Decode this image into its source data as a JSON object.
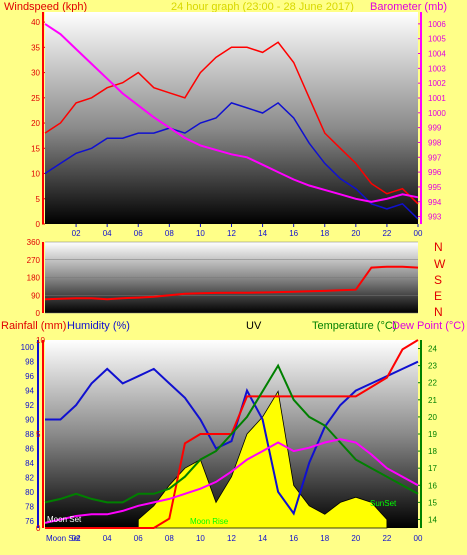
{
  "colors": {
    "background": "#ffff88",
    "wind_gust": "#ff0000",
    "wind_avg": "#1010d0",
    "barometer": "#ff00ff",
    "direction": "#ff0000",
    "humidity": "#1010d0",
    "rainfall": "#ff0000",
    "temperature": "#008000",
    "dew_point": "#ff00ff",
    "uv": "#ffff00",
    "solar": "#000000"
  },
  "header": {
    "windspeed": "Windspeed (kph)",
    "title": "24 hour graph (23:00 - 28 June 2017)",
    "barometer": "Barometer (mb)"
  },
  "bottom_header": {
    "rainfall": "Rainfall (mm)",
    "humidity": "Humidity (%)",
    "uv": "UV",
    "temperature": "Temperature (°C)",
    "dew_point": "Dew Point (°C)"
  },
  "direction_labels": [
    "N",
    "W",
    "S",
    "E",
    "N"
  ],
  "annotations": {
    "moon_set": "Moon Set",
    "moon_rise": "Moon Rise",
    "sun_set": "SunSet"
  },
  "chart_data": [
    {
      "type": "line",
      "name": "wind_barometer",
      "x": [
        "02",
        "04",
        "06",
        "08",
        "10",
        "12",
        "14",
        "16",
        "18",
        "20",
        "22",
        "00"
      ],
      "x_positions_hours": [
        2,
        4,
        6,
        8,
        10,
        12,
        14,
        16,
        18,
        20,
        22,
        24
      ],
      "y_left": {
        "label": "Windspeed (kph)",
        "range": [
          0,
          42
        ],
        "ticks": [
          0,
          5,
          10,
          15,
          20,
          25,
          30,
          35,
          40
        ]
      },
      "y_right": {
        "label": "Barometer (mb)",
        "range": [
          992.5,
          1006.8
        ],
        "ticks": [
          993,
          994,
          995,
          996,
          997,
          998,
          999,
          1000,
          1001,
          1002,
          1003,
          1004,
          1005,
          1006
        ]
      },
      "series": [
        {
          "name": "gust",
          "axis": "left",
          "x": [
            0,
            1,
            2,
            3,
            4,
            5,
            6,
            7,
            8,
            9,
            10,
            11,
            12,
            13,
            14,
            15,
            16,
            17,
            18,
            19,
            20,
            21,
            22,
            23,
            24
          ],
          "values": [
            18,
            20,
            24,
            25,
            27,
            28,
            30,
            27,
            26,
            25,
            30,
            33,
            35,
            35,
            34,
            36,
            32,
            25,
            18,
            15,
            12,
            8,
            6,
            7,
            4
          ]
        },
        {
          "name": "average",
          "axis": "left",
          "x": [
            0,
            1,
            2,
            3,
            4,
            5,
            6,
            7,
            8,
            9,
            10,
            11,
            12,
            13,
            14,
            15,
            16,
            17,
            18,
            19,
            20,
            21,
            22,
            23,
            24
          ],
          "values": [
            10,
            12,
            14,
            15,
            17,
            17,
            18,
            18,
            19,
            18,
            20,
            21,
            24,
            23,
            22,
            24,
            21,
            16,
            12,
            9,
            7,
            4,
            3,
            4,
            1
          ]
        },
        {
          "name": "barometer",
          "axis": "right",
          "x": [
            0,
            1,
            2,
            3,
            4,
            5,
            6,
            7,
            8,
            9,
            10,
            11,
            12,
            13,
            14,
            15,
            16,
            17,
            18,
            19,
            20,
            21,
            22,
            23,
            24
          ],
          "values": [
            1006,
            1005.3,
            1004.3,
            1003.3,
            1002.3,
            1001.3,
            1000.5,
            999.7,
            999,
            998.3,
            997.8,
            997.5,
            997.2,
            997.0,
            996.5,
            996,
            995.5,
            995.1,
            994.8,
            994.5,
            994.2,
            994,
            994.2,
            994.5,
            994.3
          ]
        }
      ]
    },
    {
      "type": "line",
      "name": "wind_direction",
      "y": {
        "range": [
          0,
          360
        ],
        "ticks": [
          0,
          90,
          180,
          270,
          360
        ]
      },
      "series": [
        {
          "name": "direction",
          "x": [
            0,
            1,
            2,
            3,
            4,
            5,
            6,
            7,
            8,
            9,
            10,
            11,
            12,
            13,
            14,
            15,
            16,
            17,
            18,
            19,
            20,
            21,
            22,
            23,
            24
          ],
          "values": [
            70,
            72,
            75,
            75,
            70,
            75,
            78,
            82,
            90,
            98,
            100,
            102,
            103,
            103,
            104,
            106,
            108,
            110,
            112,
            115,
            118,
            230,
            235,
            235,
            230
          ]
        }
      ]
    },
    {
      "type": "line",
      "name": "rain_humidity_temp",
      "y_humidity": {
        "label": "Humidity (%)",
        "range": [
          75,
          101
        ],
        "ticks": [
          76,
          78,
          80,
          82,
          84,
          86,
          88,
          90,
          92,
          94,
          96,
          98,
          100
        ]
      },
      "y_rain": {
        "label": "Rainfall (mm)",
        "range": [
          0,
          10
        ],
        "ticks": [
          0,
          5,
          10
        ]
      },
      "y_temp": {
        "label": "Temperature (°C)",
        "range": [
          13.5,
          24.5
        ],
        "ticks": [
          14,
          15,
          16,
          17,
          18,
          19,
          20,
          21,
          22,
          23,
          24
        ]
      },
      "series": [
        {
          "name": "humidity",
          "axis": "humidity",
          "x": [
            0,
            1,
            2,
            3,
            4,
            5,
            6,
            7,
            8,
            9,
            10,
            11,
            12,
            13,
            14,
            15,
            16,
            17,
            18,
            19,
            20,
            21,
            22,
            23,
            24
          ],
          "values": [
            90,
            90,
            92,
            95,
            97,
            95,
            96,
            97,
            95,
            93,
            90,
            86,
            87,
            94,
            90,
            80,
            77,
            84,
            89,
            92,
            94,
            95,
            96,
            97,
            98
          ]
        },
        {
          "name": "rainfall",
          "axis": "rain",
          "x": [
            0,
            1,
            2,
            3,
            4,
            5,
            6,
            7,
            8,
            9,
            10,
            11,
            12,
            13,
            14,
            15,
            16,
            17,
            18,
            19,
            20,
            21,
            22,
            23,
            24
          ],
          "values": [
            0,
            0,
            0,
            0,
            0,
            0,
            0,
            0,
            0.5,
            4.5,
            5,
            5,
            5,
            7,
            7,
            7,
            7,
            7,
            7,
            7,
            7,
            7.5,
            8,
            9.5,
            10
          ]
        },
        {
          "name": "temperature",
          "axis": "temp",
          "x": [
            0,
            1,
            2,
            3,
            4,
            5,
            6,
            7,
            8,
            9,
            10,
            11,
            12,
            13,
            14,
            15,
            16,
            17,
            18,
            19,
            20,
            21,
            22,
            23,
            24
          ],
          "values": [
            15,
            15.2,
            15.5,
            15.2,
            15,
            15,
            15.5,
            15.5,
            15.8,
            16.5,
            17.5,
            18,
            19,
            20,
            21.5,
            23,
            21,
            20,
            19.5,
            18.5,
            17.5,
            17,
            16.5,
            16,
            15.5
          ]
        },
        {
          "name": "dew_point",
          "axis": "temp",
          "x": [
            0,
            1,
            2,
            3,
            4,
            5,
            6,
            7,
            8,
            9,
            10,
            11,
            12,
            13,
            14,
            15,
            16,
            17,
            18,
            19,
            20,
            21,
            22,
            23,
            24
          ],
          "values": [
            13.8,
            14,
            14.2,
            14.3,
            14.3,
            14.5,
            14.8,
            15,
            15.2,
            15.5,
            15.8,
            16.2,
            16.8,
            17.5,
            18,
            18.5,
            18,
            18.2,
            18.5,
            18.7,
            18.5,
            17.8,
            17,
            16.5,
            16
          ]
        },
        {
          "name": "uv",
          "axis": "temp",
          "x": [
            6,
            7,
            8,
            9,
            10,
            11,
            12,
            13,
            14,
            15,
            16,
            17,
            18,
            19,
            20,
            21,
            22
          ],
          "values": [
            14,
            14.8,
            16,
            17,
            17.5,
            15,
            16.5,
            19,
            20,
            21.5,
            16,
            14.8,
            14.3,
            15,
            15.3,
            15,
            14
          ]
        }
      ]
    }
  ]
}
